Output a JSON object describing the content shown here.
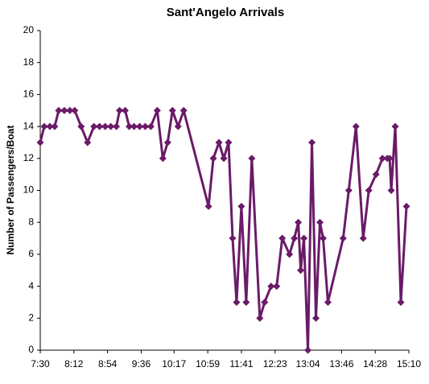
{
  "chart_data": {
    "type": "line",
    "title": "Sant'Angelo Arrivals",
    "y_label": "Number of Passengers/Boat",
    "x": [
      450,
      455,
      462,
      468,
      473,
      480,
      487,
      493,
      501,
      509,
      517,
      524,
      531,
      538,
      545,
      549,
      556,
      561,
      567,
      574,
      581,
      588,
      596,
      603,
      609,
      615,
      622,
      629,
      660,
      666,
      673,
      679,
      685,
      690,
      695,
      701,
      707,
      714,
      724,
      730,
      738,
      745,
      752,
      761,
      767,
      772,
      775,
      779,
      784,
      789,
      794,
      799,
      803,
      809,
      828,
      835,
      844,
      853,
      860,
      869,
      877,
      883,
      886,
      888,
      893,
      900,
      907
    ],
    "series": [
      {
        "name": "Arrivals",
        "color": "#6a1b68",
        "values": [
          13,
          14,
          14,
          14,
          15,
          15,
          15,
          15,
          14,
          13,
          14,
          14,
          14,
          14,
          14,
          15,
          15,
          14,
          14,
          14,
          14,
          14,
          15,
          12,
          13,
          15,
          14,
          15,
          9,
          12,
          13,
          12,
          13,
          7,
          3,
          9,
          3,
          12,
          2,
          3,
          4,
          4,
          7,
          6,
          7,
          8,
          5,
          7,
          0,
          13,
          2,
          8,
          7,
          3,
          7,
          10,
          14,
          7,
          10,
          11,
          12,
          12,
          12,
          10,
          14,
          3,
          9
        ]
      }
    ],
    "xlim": [
      450,
      910
    ],
    "xticks": [
      {
        "value": 450,
        "label": "7:30"
      },
      {
        "value": 492,
        "label": "8:12"
      },
      {
        "value": 534,
        "label": "8:54"
      },
      {
        "value": 576,
        "label": "9:36"
      },
      {
        "value": 617,
        "label": "10:17"
      },
      {
        "value": 659,
        "label": "10:59"
      },
      {
        "value": 701,
        "label": "11:41"
      },
      {
        "value": 743,
        "label": "12:23"
      },
      {
        "value": 784,
        "label": "13:04"
      },
      {
        "value": 826,
        "label": "13:46"
      },
      {
        "value": 868,
        "label": "14:28"
      },
      {
        "value": 910,
        "label": "15:10"
      }
    ],
    "ylim": [
      0,
      20
    ],
    "yticks": [
      0,
      2,
      4,
      6,
      8,
      10,
      12,
      14,
      16,
      18,
      20
    ],
    "grid": false
  }
}
